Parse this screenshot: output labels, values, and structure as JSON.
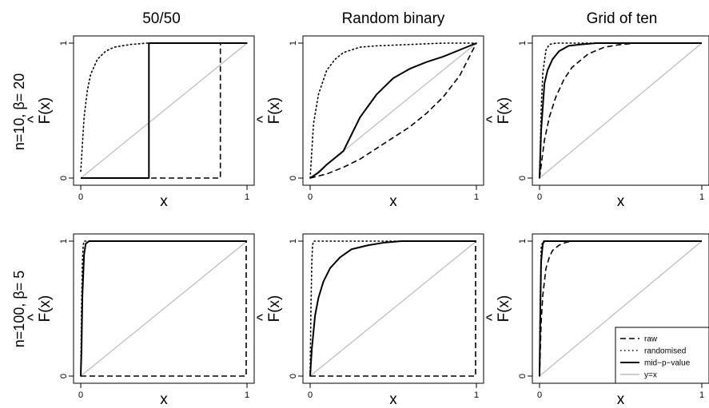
{
  "figure": {
    "columns": [
      "50/50",
      "Random binary",
      "Grid of ten"
    ],
    "rows": [
      "n=10, β= 20",
      "n=100, β= 5"
    ],
    "xlabel": "x",
    "ylabel": "F(x)",
    "ylabel_hat": "^"
  },
  "legend": {
    "position": "bottom-right of last panel",
    "entries": [
      {
        "label": "raw",
        "style": "dashed",
        "color": "#000000"
      },
      {
        "label": "randomised",
        "style": "dotted",
        "color": "#000000"
      },
      {
        "label": "mid−p−value",
        "style": "solid",
        "color": "#000000"
      },
      {
        "label": "y=x",
        "style": "solid",
        "color": "#bbbbbb"
      }
    ]
  },
  "chart_data": [
    {
      "type": "line",
      "title": "50/50",
      "row_label": "n=10, β= 20",
      "xlabel": "x",
      "ylabel": "F(x)",
      "xlim": [
        0,
        1
      ],
      "ylim": [
        0,
        1
      ],
      "xticks": [
        0,
        1
      ],
      "yticks": [
        0,
        1
      ],
      "series": [
        {
          "name": "raw",
          "x": [
            0,
            0.84,
            0.84,
            1
          ],
          "y": [
            0,
            0,
            1,
            1
          ]
        },
        {
          "name": "randomised",
          "x": [
            0,
            0.02,
            0.04,
            0.06,
            0.1,
            0.15,
            0.2,
            0.3,
            0.4,
            0.6,
            1
          ],
          "y": [
            0.05,
            0.45,
            0.65,
            0.77,
            0.88,
            0.94,
            0.97,
            0.99,
            1,
            1,
            1
          ]
        },
        {
          "name": "mid−p−value",
          "x": [
            0,
            0.41,
            0.41,
            1
          ],
          "y": [
            0,
            0,
            1,
            1
          ]
        },
        {
          "name": "y=x",
          "x": [
            0,
            1
          ],
          "y": [
            0,
            1
          ]
        }
      ]
    },
    {
      "type": "line",
      "title": "Random binary",
      "row_label": "n=10, β= 20",
      "xlabel": "x",
      "ylabel": "F(x)",
      "xlim": [
        0,
        1
      ],
      "ylim": [
        0,
        1
      ],
      "xticks": [
        0,
        1
      ],
      "yticks": [
        0,
        1
      ],
      "series": [
        {
          "name": "raw",
          "x": [
            0,
            0.1,
            0.2,
            0.3,
            0.4,
            0.5,
            0.6,
            0.7,
            0.8,
            0.9,
            1
          ],
          "y": [
            0,
            0.03,
            0.08,
            0.14,
            0.22,
            0.3,
            0.38,
            0.48,
            0.6,
            0.76,
            1
          ]
        },
        {
          "name": "randomised",
          "x": [
            0,
            0.02,
            0.05,
            0.1,
            0.15,
            0.2,
            0.3,
            0.4,
            0.6,
            0.8,
            1
          ],
          "y": [
            0,
            0.4,
            0.62,
            0.8,
            0.88,
            0.93,
            0.97,
            0.98,
            0.99,
            1,
            1
          ]
        },
        {
          "name": "mid−p−value",
          "x": [
            0,
            0.05,
            0.1,
            0.2,
            0.3,
            0.4,
            0.5,
            0.6,
            0.7,
            0.8,
            0.9,
            1
          ],
          "y": [
            0,
            0.04,
            0.1,
            0.2,
            0.45,
            0.62,
            0.74,
            0.81,
            0.86,
            0.9,
            0.95,
            1
          ]
        },
        {
          "name": "y=x",
          "x": [
            0,
            1
          ],
          "y": [
            0,
            1
          ]
        }
      ]
    },
    {
      "type": "line",
      "title": "Grid of ten",
      "row_label": "n=10, β= 20",
      "xlabel": "x",
      "ylabel": "F(x)",
      "xlim": [
        0,
        1
      ],
      "ylim": [
        0,
        1
      ],
      "xticks": [
        0,
        1
      ],
      "yticks": [
        0,
        1
      ],
      "series": [
        {
          "name": "raw",
          "x": [
            0,
            0.03,
            0.06,
            0.1,
            0.15,
            0.2,
            0.3,
            0.4,
            0.5,
            0.6,
            0.8,
            1
          ],
          "y": [
            0,
            0.28,
            0.45,
            0.6,
            0.73,
            0.82,
            0.92,
            0.97,
            0.99,
            1,
            1,
            1
          ]
        },
        {
          "name": "randomised",
          "x": [
            0,
            0.01,
            0.02,
            0.04,
            0.06,
            0.1,
            0.2,
            1
          ],
          "y": [
            0,
            0.5,
            0.78,
            0.95,
            0.99,
            1,
            1,
            1
          ]
        },
        {
          "name": "mid−p−value",
          "x": [
            0,
            0.01,
            0.03,
            0.05,
            0.08,
            0.12,
            0.18,
            0.25,
            0.35,
            1
          ],
          "y": [
            0,
            0.35,
            0.7,
            0.8,
            0.88,
            0.94,
            0.98,
            0.99,
            1,
            1
          ]
        },
        {
          "name": "y=x",
          "x": [
            0,
            1
          ],
          "y": [
            0,
            1
          ]
        }
      ]
    },
    {
      "type": "line",
      "title": "50/50",
      "row_label": "n=100, β= 5",
      "xlabel": "x",
      "ylabel": "F(x)",
      "xlim": [
        0,
        1
      ],
      "ylim": [
        0,
        1
      ],
      "xticks": [
        0,
        1
      ],
      "yticks": [
        0,
        1
      ],
      "series": [
        {
          "name": "raw",
          "x": [
            0,
            0.995,
            0.995,
            1
          ],
          "y": [
            0,
            0,
            1,
            1
          ]
        },
        {
          "name": "randomised",
          "x": [
            0,
            0.005,
            0.01,
            0.015,
            0.02,
            0.04,
            1
          ],
          "y": [
            0,
            0.5,
            0.85,
            0.97,
            1,
            1,
            1
          ]
        },
        {
          "name": "mid−p−value",
          "x": [
            0,
            0.005,
            0.01,
            0.02,
            0.03,
            0.05,
            1
          ],
          "y": [
            0,
            0.2,
            0.6,
            0.9,
            0.98,
            1,
            1
          ]
        },
        {
          "name": "y=x",
          "x": [
            0,
            1
          ],
          "y": [
            0,
            1
          ]
        }
      ]
    },
    {
      "type": "line",
      "title": "Random binary",
      "row_label": "n=100, β= 5",
      "xlabel": "x",
      "ylabel": "F(x)",
      "xlim": [
        0,
        1
      ],
      "ylim": [
        0,
        1
      ],
      "xticks": [
        0,
        1
      ],
      "yticks": [
        0,
        1
      ],
      "series": [
        {
          "name": "raw",
          "x": [
            0,
            0.995,
            0.995,
            1
          ],
          "y": [
            0,
            0,
            1,
            1
          ]
        },
        {
          "name": "randomised",
          "x": [
            0,
            0.005,
            0.01,
            0.015,
            0.02,
            0.04,
            1
          ],
          "y": [
            0,
            0.5,
            0.85,
            0.97,
            1,
            1,
            1
          ]
        },
        {
          "name": "mid−p−value",
          "x": [
            0,
            0.01,
            0.03,
            0.05,
            0.08,
            0.12,
            0.18,
            0.25,
            0.35,
            0.45,
            0.55,
            0.65,
            1
          ],
          "y": [
            0,
            0.2,
            0.45,
            0.58,
            0.7,
            0.8,
            0.88,
            0.94,
            0.97,
            0.99,
            1,
            1,
            1
          ]
        },
        {
          "name": "y=x",
          "x": [
            0,
            1
          ],
          "y": [
            0,
            1
          ]
        }
      ]
    },
    {
      "type": "line",
      "title": "Grid of ten",
      "row_label": "n=100, β= 5",
      "xlabel": "x",
      "ylabel": "F(x)",
      "xlim": [
        0,
        1
      ],
      "ylim": [
        0,
        1
      ],
      "xticks": [
        0,
        1
      ],
      "yticks": [
        0,
        1
      ],
      "series": [
        {
          "name": "raw",
          "x": [
            0,
            0.01,
            0.02,
            0.04,
            0.06,
            0.08,
            0.12,
            0.16,
            0.2,
            0.3,
            1
          ],
          "y": [
            0,
            0.4,
            0.6,
            0.8,
            0.88,
            0.93,
            0.97,
            0.99,
            1,
            1,
            1
          ]
        },
        {
          "name": "randomised",
          "x": [
            0,
            0.005,
            0.01,
            0.02,
            1
          ],
          "y": [
            0,
            0.6,
            0.95,
            1,
            1
          ]
        },
        {
          "name": "mid−p−value",
          "x": [
            0,
            0.005,
            0.01,
            0.02,
            0.03,
            1
          ],
          "y": [
            0,
            0.5,
            0.85,
            0.98,
            1,
            1
          ]
        },
        {
          "name": "y=x",
          "x": [
            0,
            1
          ],
          "y": [
            0,
            1
          ]
        }
      ]
    }
  ]
}
